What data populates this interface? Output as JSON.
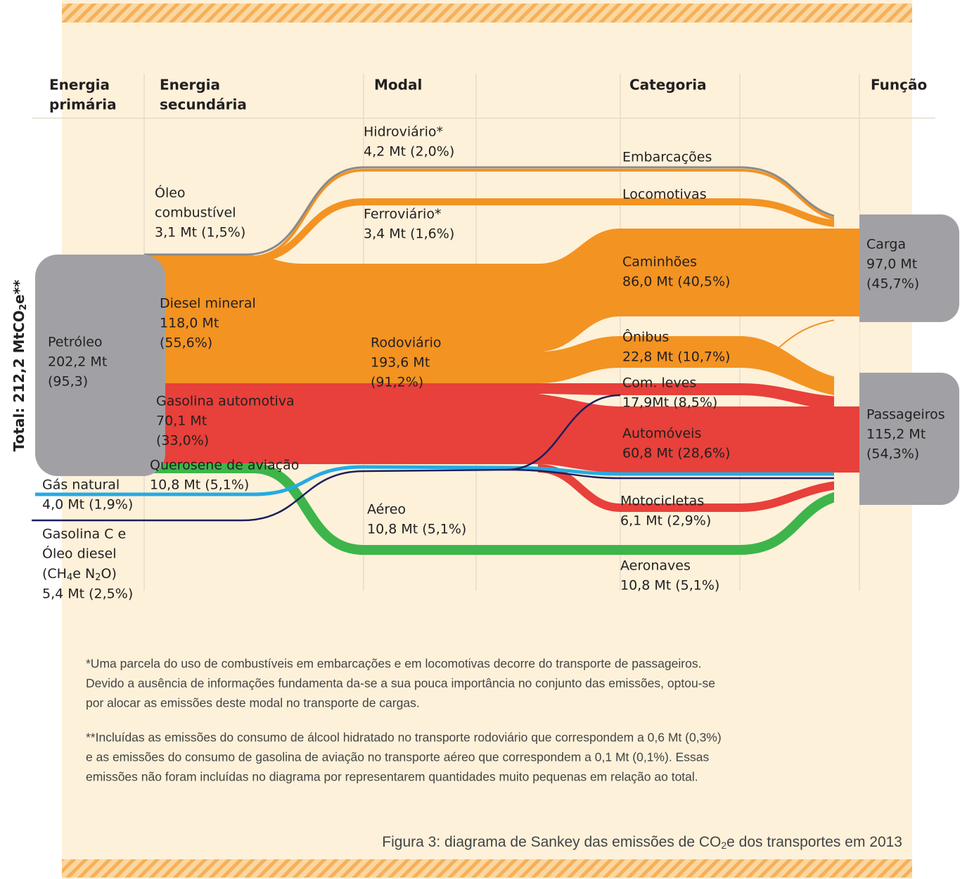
{
  "headers": [
    [
      "Energia",
      "primária"
    ],
    [
      "Energia",
      "secundária"
    ],
    [
      "Modal"
    ],
    [
      "Categoria"
    ],
    [
      "Função"
    ]
  ],
  "total": {
    "text": "Total: 212,2 MtCO",
    "sub": "2",
    "suffix": "e**"
  },
  "primary": [
    {
      "lines": [
        "Petróleo",
        "202,2 Mt",
        "(95,3)"
      ]
    },
    {
      "lines": [
        "Gás natural",
        "4,0 Mt (1,9%)"
      ]
    },
    {
      "lines": [
        "Gasolina C e",
        "Óleo diesel"
      ],
      "formula": {
        "pre": "(CH",
        "sub1": "4",
        "mid": "e N",
        "sub2": "2",
        "post": "O)"
      },
      "value": "5,4 Mt (2,5%)"
    }
  ],
  "secondary": [
    {
      "lines": [
        "Óleo",
        "combustível",
        "3,1 Mt (1,5%)"
      ]
    },
    {
      "lines": [
        "Diesel mineral",
        "118,0 Mt",
        "(55,6%)"
      ]
    },
    {
      "lines": [
        "Gasolina automotiva",
        "70,1 Mt",
        "(33,0%)"
      ]
    },
    {
      "lines": [
        "Querosene de aviação",
        "10,8  Mt (5,1%)"
      ]
    }
  ],
  "modal": [
    {
      "lines": [
        "Hidroviário*",
        "4,2 Mt (2,0%)"
      ]
    },
    {
      "lines": [
        "Ferroviário*",
        "3,4 Mt (1,6%)"
      ]
    },
    {
      "lines": [
        "Rodoviário",
        "193,6 Mt",
        "(91,2%)"
      ]
    },
    {
      "lines": [
        "Aéreo",
        "10,8 Mt (5,1%)"
      ]
    }
  ],
  "category": [
    {
      "lines": [
        "Embarcações"
      ]
    },
    {
      "lines": [
        "Locomotivas"
      ]
    },
    {
      "lines": [
        "Caminhões",
        "86,0 Mt (40,5%)"
      ]
    },
    {
      "lines": [
        "Ônibus",
        "22,8 Mt (10,7%)"
      ]
    },
    {
      "lines": [
        "Com. leves",
        "17,9Mt (8,5%)"
      ]
    },
    {
      "lines": [
        "Automóveis",
        "60,8 Mt (28,6%)"
      ]
    },
    {
      "lines": [
        "Motocicletas",
        "6,1 Mt (2,9%)"
      ]
    },
    {
      "lines": [
        "Aeronaves",
        "10,8  Mt (5,1%)"
      ]
    }
  ],
  "function": [
    {
      "lines": [
        "Carga",
        "97,0 Mt",
        "(45,7%)"
      ]
    },
    {
      "lines": [
        "Passageiros",
        "115,2 Mt",
        "(54,3%)"
      ]
    }
  ],
  "notes": [
    [
      "*Uma parcela do uso de combustíveis em embarcações e em locomotivas decorre do transporte de passageiros.",
      "Devido a ausência de informações fundamenta da-se a sua pouca importância no conjunto das emissões, optou-se",
      "por alocar as emissões deste modal no transporte de cargas."
    ],
    [
      "**Incluídas as emissões do consumo de álcool hidratado no transporte rodoviário que correspondem a 0,6 Mt (0,3%)",
      "e as emissões do consumo de gasolina de aviação no transporte aéreo que correspondem a 0,1 Mt (0,1%). Essas",
      "emissões não foram incluídas no diagrama por representarem quantidades muito pequenas em relação ao total."
    ]
  ],
  "caption": {
    "text": "Figura 3: diagrama de Sankey das emissões de CO",
    "sub": "2",
    "suffix": "e dos transportes em 2013"
  }
}
